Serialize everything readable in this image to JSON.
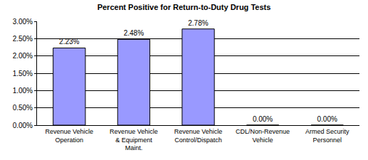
{
  "chart_data": {
    "type": "bar",
    "title": "Percent Positive for Return-to-Duty Drug Tests",
    "categories": [
      "Revenue Vehicle Operation",
      "Revenue Vehicle & Equipment Maint.",
      "Revenue Vehicle Control/Dispatch",
      "CDL/Non-Revenue Vehicle",
      "Armed Security Personnel"
    ],
    "values": [
      2.23,
      2.48,
      2.78,
      0,
      0
    ],
    "value_labels": [
      "2.23%",
      "2.48%",
      "2.78%",
      "0.00%",
      "0.00%"
    ],
    "data_labels": true,
    "color": "#9999ff",
    "ylim": [
      0,
      3
    ],
    "yticks": [
      {
        "value": 0,
        "label": "0.00%"
      },
      {
        "value": 0.5,
        "label": "0.50%"
      },
      {
        "value": 1,
        "label": "1.00%"
      },
      {
        "value": 1.5,
        "label": "1.50%"
      },
      {
        "value": 2,
        "label": "2.00%"
      },
      {
        "value": 2.5,
        "label": "2.50%"
      },
      {
        "value": 3,
        "label": "3.00%"
      }
    ],
    "grid": true
  }
}
